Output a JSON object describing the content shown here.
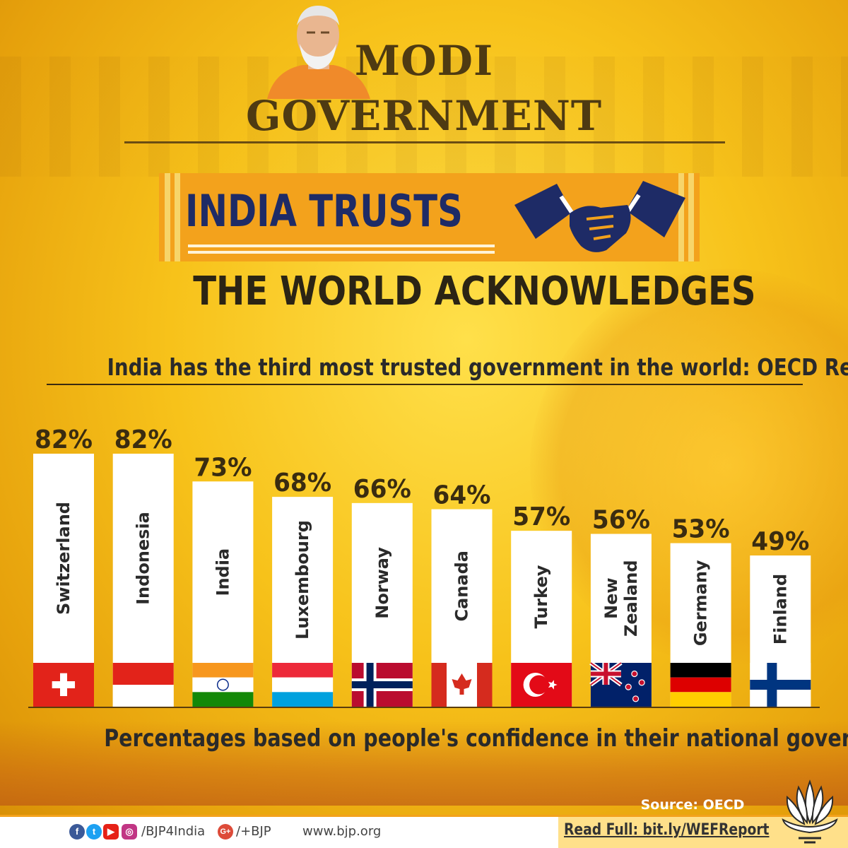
{
  "header": {
    "line1": "MODI",
    "line2": "GOVERNMENT",
    "banner": "INDIA TRUSTS",
    "tagline": "THE WORLD ACKNOWLEDGES"
  },
  "chart_data": {
    "type": "bar",
    "title": "India has the third most trusted government in the world: OECD Report",
    "caption": "Percentages based on people's confidence in their national governments",
    "categories": [
      "Switzerland",
      "Indonesia",
      "India",
      "Luxembourg",
      "Norway",
      "Canada",
      "Turkey",
      "New Zealand",
      "Germany",
      "Finland"
    ],
    "values": [
      82,
      82,
      73,
      68,
      66,
      64,
      57,
      56,
      53,
      49
    ],
    "value_labels": [
      "82%",
      "82%",
      "73%",
      "68%",
      "66%",
      "64%",
      "57%",
      "56%",
      "53%",
      "49%"
    ],
    "flags": [
      "flag-switzerland",
      "flag-indonesia",
      "flag-india",
      "flag-luxembourg",
      "flag-norway",
      "flag-canada",
      "flag-turkey",
      "flag-new-zealand",
      "flag-germany",
      "flag-finland"
    ],
    "unit": "%",
    "ylim": [
      0,
      82
    ]
  },
  "source": "Source: OECD",
  "footer": {
    "social_handle": "/BJP4India",
    "gplus_handle": "/+BJP",
    "website": "www.bjp.org",
    "read_full": "Read Full: bit.ly/WEFReport",
    "icons": [
      "facebook-icon",
      "twitter-icon",
      "youtube-icon",
      "instagram-icon",
      "google-plus-icon"
    ]
  },
  "colors": {
    "background": "#f7c21a",
    "banner": "#f3a21c",
    "banner_text": "#1e2b66",
    "heading": "#4e3a12",
    "bar": "#ffffff"
  }
}
